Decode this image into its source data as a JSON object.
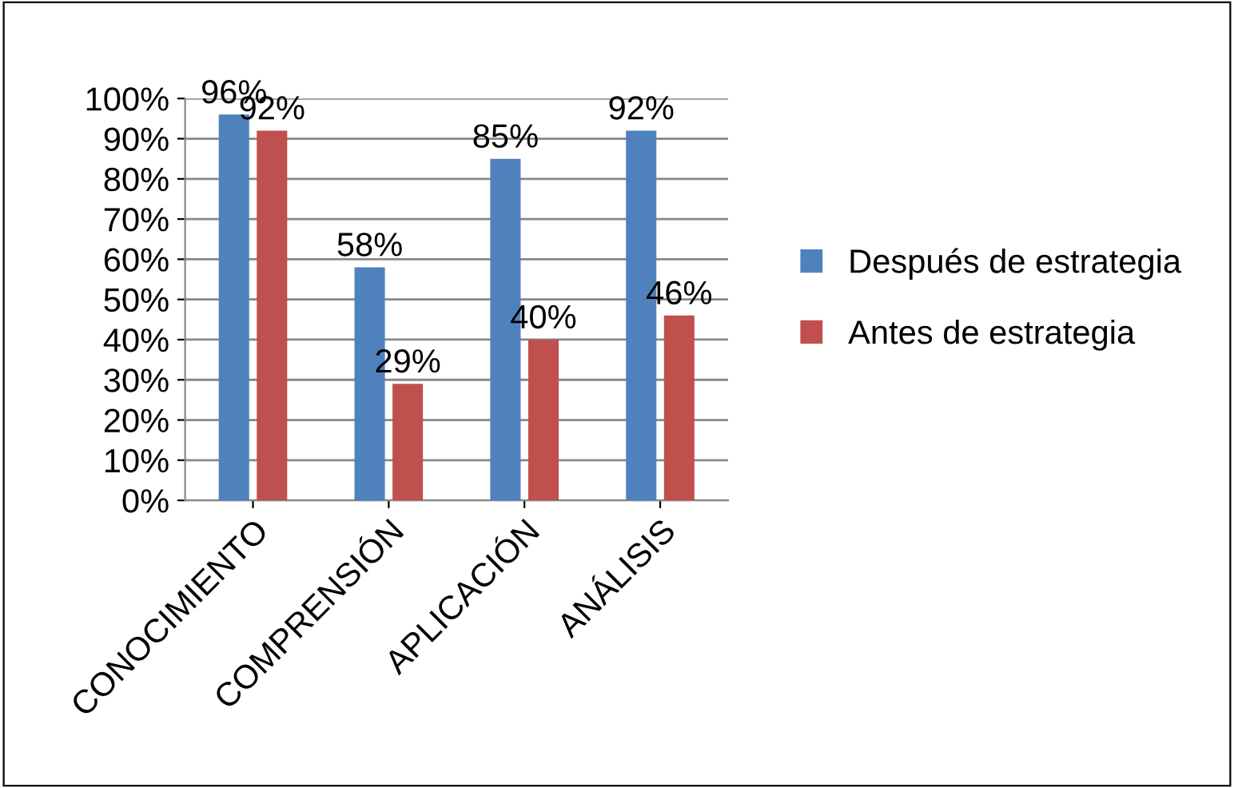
{
  "chart_data": {
    "type": "bar",
    "categories": [
      "CONOCIMIENTO",
      "COMPRENSIÓN",
      "APLICACIÓN",
      "ANÁLISIS"
    ],
    "series": [
      {
        "name": "Después de estrategia",
        "color": "#4f81bd",
        "values": [
          96,
          58,
          85,
          92
        ],
        "value_labels": [
          "96%",
          "58%",
          "85%",
          "92%"
        ]
      },
      {
        "name": "Antes de estrategia",
        "color": "#c0504d",
        "values": [
          92,
          29,
          40,
          46
        ],
        "value_labels": [
          "92%",
          "29%",
          "40%",
          "46%"
        ]
      }
    ],
    "ylim": [
      0,
      100
    ],
    "yticks": [
      {
        "value": 0,
        "label": "0%"
      },
      {
        "value": 10,
        "label": "10%"
      },
      {
        "value": 20,
        "label": "20%"
      },
      {
        "value": 30,
        "label": "30%"
      },
      {
        "value": 40,
        "label": "40%"
      },
      {
        "value": 50,
        "label": "50%"
      },
      {
        "value": 60,
        "label": "60%"
      },
      {
        "value": 70,
        "label": "70%"
      },
      {
        "value": 80,
        "label": "80%"
      },
      {
        "value": 90,
        "label": "90%"
      },
      {
        "value": 100,
        "label": "100%"
      }
    ],
    "grid": "y",
    "legend": "right"
  }
}
